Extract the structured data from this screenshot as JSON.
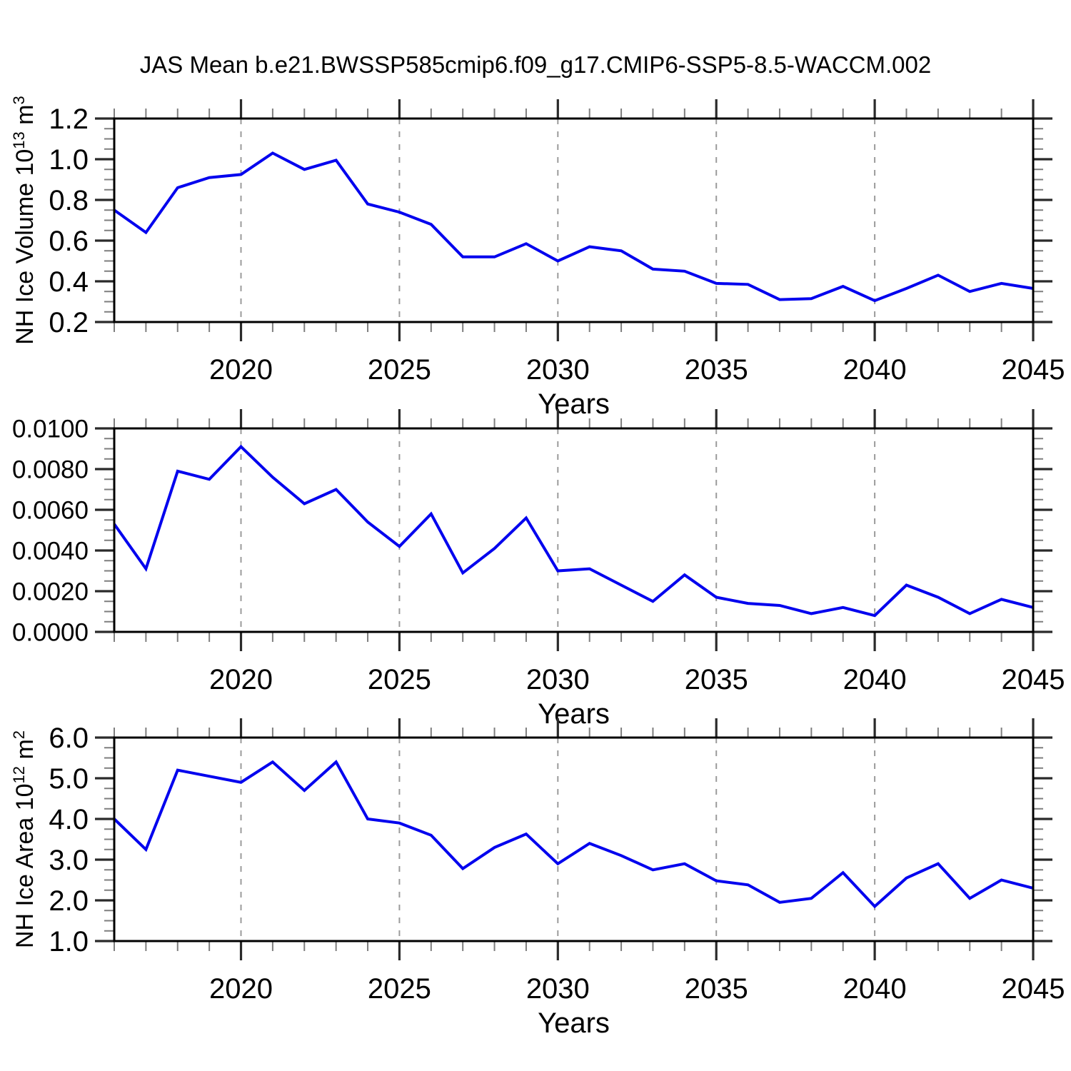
{
  "title": "JAS Mean b.e21.BWSSP585cmip6.f09_g17.CMIP6-SSP5-8.5-WACCM.002",
  "style": {
    "line_color": "#0202EE",
    "grid_color": "#9B9B9B",
    "frame_color": "#000000",
    "major_tick_color": "#2A2A2A",
    "minor_tick_color": "#7E7E7E",
    "text_color": "#000000"
  },
  "chart_data": [
    {
      "type": "line",
      "title": "",
      "xlabel": "Years",
      "ylabel": "NH Ice Volume 10^13 m^3",
      "ylabel_rich": [
        [
          "NH Ice Volume 10",
          0
        ],
        [
          "13",
          1
        ],
        [
          " m",
          0
        ],
        [
          "3",
          1
        ]
      ],
      "xlim": [
        2016,
        2045
      ],
      "ylim": [
        0.2,
        1.2
      ],
      "xticks": [
        2020,
        2025,
        2030,
        2035,
        2040,
        2045
      ],
      "xtick_labels": [
        "2020",
        "2025",
        "2030",
        "2035",
        "2040",
        "2045"
      ],
      "xminor_step": 1,
      "gridlines_x": [
        2020,
        2025,
        2030,
        2035,
        2040
      ],
      "ytick_values": [
        0.2,
        0.4,
        0.6,
        0.8,
        1.0,
        1.2
      ],
      "ytick_labels": [
        "0.2",
        "0.4",
        "0.6",
        "0.8",
        "1.0",
        "1.2"
      ],
      "yminor_step": 0.05,
      "grid": "dashed-vertical",
      "legend": "none",
      "x": [
        2016,
        2017,
        2018,
        2019,
        2020,
        2021,
        2022,
        2023,
        2024,
        2025,
        2026,
        2027,
        2028,
        2029,
        2030,
        2031,
        2032,
        2033,
        2034,
        2035,
        2036,
        2037,
        2038,
        2039,
        2040,
        2041,
        2042,
        2043,
        2044,
        2045
      ],
      "values": [
        0.75,
        0.64,
        0.86,
        0.91,
        0.925,
        1.03,
        0.95,
        0.995,
        0.78,
        0.74,
        0.68,
        0.52,
        0.52,
        0.585,
        0.5,
        0.57,
        0.55,
        0.46,
        0.45,
        0.39,
        0.385,
        0.31,
        0.315,
        0.375,
        0.305,
        0.365,
        0.43,
        0.35,
        0.39,
        0.365
      ]
    },
    {
      "type": "line",
      "title": "",
      "xlabel": "Years",
      "ylabel": "",
      "ylabel_rich": [],
      "xlim": [
        2016,
        2045
      ],
      "ylim": [
        0.0,
        0.01
      ],
      "xticks": [
        2020,
        2025,
        2030,
        2035,
        2040,
        2045
      ],
      "xtick_labels": [
        "2020",
        "2025",
        "2030",
        "2035",
        "2040",
        "2045"
      ],
      "xminor_step": 1,
      "gridlines_x": [
        2020,
        2025,
        2030,
        2035,
        2040
      ],
      "ytick_values": [
        0.0,
        0.002,
        0.004,
        0.006,
        0.008,
        0.01
      ],
      "ytick_labels": [
        "0.0000",
        "0.0020",
        "0.0040",
        "0.0060",
        "0.0080",
        "0.0100"
      ],
      "yminor_step": 0.0005,
      "grid": "dashed-vertical",
      "legend": "none",
      "x": [
        2016,
        2017,
        2018,
        2019,
        2020,
        2021,
        2022,
        2023,
        2024,
        2025,
        2026,
        2027,
        2028,
        2029,
        2030,
        2031,
        2032,
        2033,
        2034,
        2035,
        2036,
        2037,
        2038,
        2039,
        2040,
        2041,
        2042,
        2043,
        2044,
        2045
      ],
      "values": [
        0.0053,
        0.0031,
        0.0079,
        0.0075,
        0.0091,
        0.0076,
        0.0063,
        0.007,
        0.0054,
        0.0042,
        0.0058,
        0.0029,
        0.0041,
        0.0056,
        0.003,
        0.0031,
        0.0023,
        0.0015,
        0.0028,
        0.0017,
        0.0014,
        0.0013,
        0.0009,
        0.0012,
        0.0008,
        0.0023,
        0.0017,
        0.0009,
        0.0016,
        0.0012
      ]
    },
    {
      "type": "line",
      "title": "",
      "xlabel": "Years",
      "ylabel": "NH Ice Area 10^12 m^2",
      "ylabel_rich": [
        [
          "NH Ice Area 10",
          0
        ],
        [
          "12",
          1
        ],
        [
          " m",
          0
        ],
        [
          "2",
          1
        ]
      ],
      "xlim": [
        2016,
        2045
      ],
      "ylim": [
        1.0,
        6.0
      ],
      "xticks": [
        2020,
        2025,
        2030,
        2035,
        2040,
        2045
      ],
      "xtick_labels": [
        "2020",
        "2025",
        "2030",
        "2035",
        "2040",
        "2045"
      ],
      "xminor_step": 1,
      "gridlines_x": [
        2020,
        2025,
        2030,
        2035,
        2040
      ],
      "ytick_values": [
        1.0,
        2.0,
        3.0,
        4.0,
        5.0,
        6.0
      ],
      "ytick_labels": [
        "1.0",
        "2.0",
        "3.0",
        "4.0",
        "5.0",
        "6.0"
      ],
      "yminor_step": 0.25,
      "grid": "dashed-vertical",
      "legend": "none",
      "x": [
        2016,
        2017,
        2018,
        2019,
        2020,
        2021,
        2022,
        2023,
        2024,
        2025,
        2026,
        2027,
        2028,
        2029,
        2030,
        2031,
        2032,
        2033,
        2034,
        2035,
        2036,
        2037,
        2038,
        2039,
        2040,
        2041,
        2042,
        2043,
        2044,
        2045
      ],
      "values": [
        4.0,
        3.25,
        5.2,
        5.05,
        4.9,
        5.4,
        4.7,
        5.4,
        4.0,
        3.9,
        3.6,
        2.78,
        3.3,
        3.63,
        2.9,
        3.4,
        3.1,
        2.75,
        2.9,
        2.48,
        2.38,
        1.95,
        2.05,
        2.68,
        1.85,
        2.55,
        2.9,
        2.05,
        2.5,
        2.3
      ]
    }
  ]
}
